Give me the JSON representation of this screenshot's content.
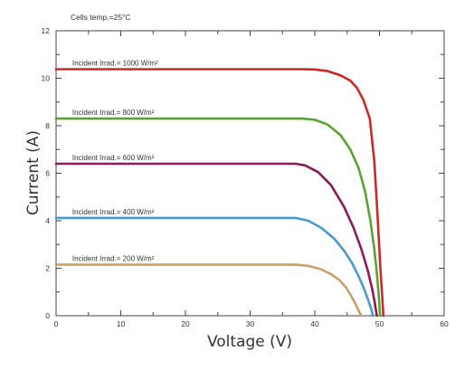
{
  "chart_data": {
    "type": "line",
    "annotation": "Cells temp.=25°C",
    "xlabel": "Voltage (V)",
    "ylabel": "Current (A)",
    "xlim": [
      0,
      60
    ],
    "ylim": [
      0,
      12
    ],
    "xticks": [
      0,
      10,
      20,
      30,
      40,
      50,
      60
    ],
    "yticks": [
      0,
      2,
      4,
      6,
      8,
      10,
      12
    ],
    "grid": false,
    "series": [
      {
        "name": "Incident Irrad.= 1000 W/m²",
        "color": "#c62a2a",
        "x": [
          0,
          10,
          20,
          30,
          38,
          40,
          42,
          44,
          45.5,
          46.5,
          47.5,
          48.5,
          49.2,
          49.7,
          50.1,
          50.4,
          50.6
        ],
        "y": [
          10.38,
          10.38,
          10.38,
          10.38,
          10.38,
          10.37,
          10.3,
          10.12,
          9.9,
          9.6,
          9.1,
          8.3,
          6.5,
          4.2,
          2.2,
          0.9,
          0
        ]
      },
      {
        "name": "Incident Irrad.= 800 W/m²",
        "color": "#5aa232",
        "x": [
          0,
          10,
          20,
          30,
          38,
          40,
          42,
          44,
          45.5,
          46.8,
          47.8,
          48.6,
          49.2,
          49.6,
          49.9,
          50.1
        ],
        "y": [
          8.3,
          8.3,
          8.3,
          8.3,
          8.3,
          8.25,
          8.05,
          7.6,
          7.0,
          6.2,
          5.2,
          4.0,
          2.8,
          1.8,
          0.8,
          0
        ]
      },
      {
        "name": "Incident Irrad.= 600 W/m²",
        "color": "#8b1c55",
        "x": [
          0,
          10,
          20,
          30,
          37,
          38.5,
          40.5,
          42.5,
          44.5,
          46,
          47.2,
          48.2,
          48.9,
          49.3,
          49.6
        ],
        "y": [
          6.4,
          6.4,
          6.4,
          6.4,
          6.4,
          6.33,
          6.05,
          5.5,
          4.6,
          3.7,
          2.8,
          1.9,
          1.1,
          0.5,
          0
        ]
      },
      {
        "name": "Incident Irrad.= 400 W/m²",
        "color": "#4a9ac9",
        "x": [
          0,
          10,
          20,
          30,
          37,
          39,
          41,
          43,
          44.5,
          45.8,
          46.8,
          47.6,
          48.2,
          48.7,
          49.0
        ],
        "y": [
          4.12,
          4.12,
          4.12,
          4.12,
          4.12,
          4.0,
          3.7,
          3.25,
          2.75,
          2.2,
          1.65,
          1.15,
          0.7,
          0.3,
          0
        ]
      },
      {
        "name": "Incident Irrad.= 200 W/m²",
        "color": "#c8a06a",
        "x": [
          0,
          10,
          20,
          30,
          37,
          39,
          41,
          42.5,
          43.8,
          44.8,
          45.6,
          46.3,
          46.8,
          47.2
        ],
        "y": [
          2.15,
          2.15,
          2.15,
          2.15,
          2.15,
          2.1,
          1.95,
          1.75,
          1.5,
          1.2,
          0.85,
          0.5,
          0.2,
          0
        ]
      }
    ]
  }
}
